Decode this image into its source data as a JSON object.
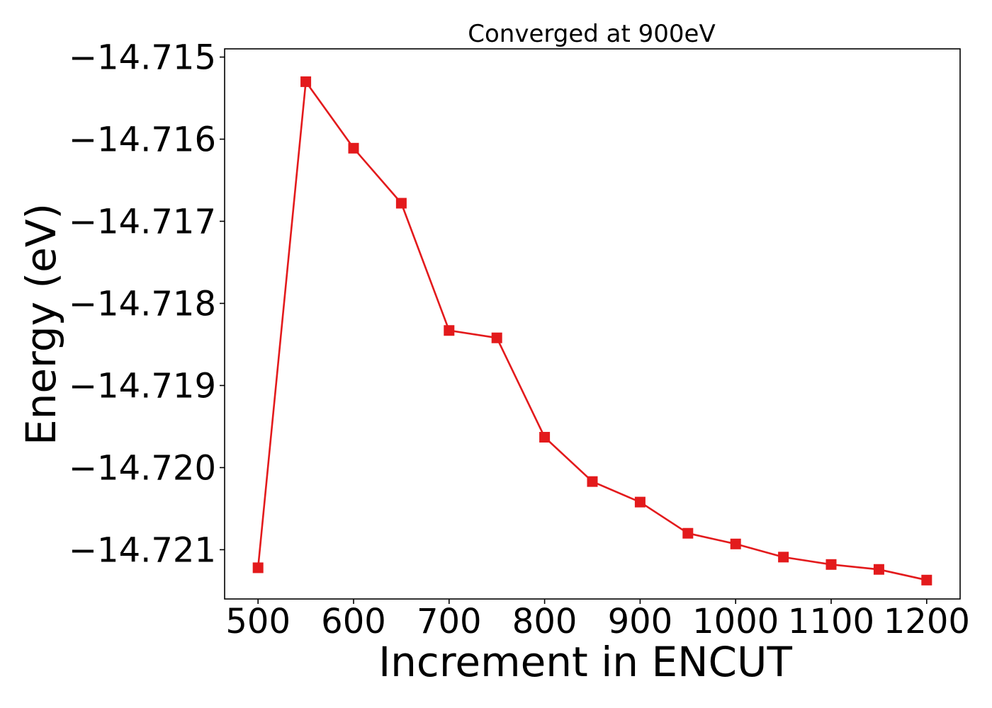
{
  "chart_data": {
    "type": "line",
    "title": "Converged at 900eV",
    "xlabel": "Increment in ENCUT",
    "ylabel": "Energy (eV)",
    "xlim": [
      465,
      1235
    ],
    "ylim": [
      -14.7216,
      -14.7149
    ],
    "x_ticks": [
      500,
      600,
      700,
      800,
      900,
      1000,
      1100,
      1200
    ],
    "x_tick_labels": [
      "500",
      "600",
      "700",
      "800",
      "900",
      "1000",
      "1100",
      "1200"
    ],
    "y_ticks": [
      -14.715,
      -14.716,
      -14.717,
      -14.718,
      -14.719,
      -14.72,
      -14.721
    ],
    "y_tick_labels": [
      "−14.715",
      "−14.716",
      "−14.717",
      "−14.718",
      "−14.719",
      "−14.720",
      "−14.721"
    ],
    "grid": false,
    "legend": "none",
    "series": [
      {
        "color": "#e31a1c",
        "marker": "square",
        "x": [
          500,
          550,
          600,
          650,
          700,
          750,
          800,
          850,
          900,
          950,
          1000,
          1050,
          1100,
          1150,
          1200
        ],
        "y": [
          -14.72122,
          -14.7153,
          -14.71611,
          -14.71678,
          -14.71833,
          -14.71842,
          -14.71963,
          -14.72017,
          -14.72042,
          -14.7208,
          -14.72093,
          -14.72109,
          -14.72118,
          -14.72124,
          -14.72137
        ]
      }
    ]
  }
}
